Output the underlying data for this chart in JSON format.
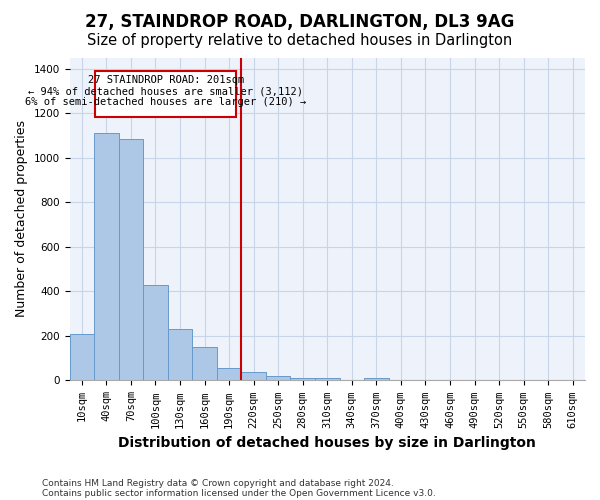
{
  "title": "27, STAINDROP ROAD, DARLINGTON, DL3 9AG",
  "subtitle": "Size of property relative to detached houses in Darlington",
  "xlabel": "Distribution of detached houses by size in Darlington",
  "ylabel": "Number of detached properties",
  "footer1": "Contains HM Land Registry data © Crown copyright and database right 2024.",
  "footer2": "Contains public sector information licensed under the Open Government Licence v3.0.",
  "annotation_title": "27 STAINDROP ROAD: 201sqm",
  "annotation_line1": "← 94% of detached houses are smaller (3,112)",
  "annotation_line2": "6% of semi-detached houses are larger (210) →",
  "bar_values": [
    207,
    1110,
    1085,
    430,
    233,
    148,
    57,
    38,
    22,
    10,
    13,
    0,
    10,
    0,
    0,
    0,
    0,
    0,
    0,
    0,
    0
  ],
  "categories": [
    "10sqm",
    "40sqm",
    "70sqm",
    "100sqm",
    "130sqm",
    "160sqm",
    "190sqm",
    "220sqm",
    "250sqm",
    "280sqm",
    "310sqm",
    "340sqm",
    "370sqm",
    "400sqm",
    "430sqm",
    "460sqm",
    "490sqm",
    "520sqm",
    "550sqm",
    "580sqm",
    "610sqm"
  ],
  "bar_color": "#adc8e6",
  "bar_edge_color": "#6699cc",
  "vline_color": "#cc0000",
  "annotation_box_color": "#cc0000",
  "bg_color": "#eef2fb",
  "ylim": [
    0,
    1450
  ],
  "grid_color": "#c8d4e8",
  "title_fontsize": 12,
  "subtitle_fontsize": 10.5,
  "axis_label_fontsize": 9,
  "tick_fontsize": 7.5,
  "footer_fontsize": 6.5
}
